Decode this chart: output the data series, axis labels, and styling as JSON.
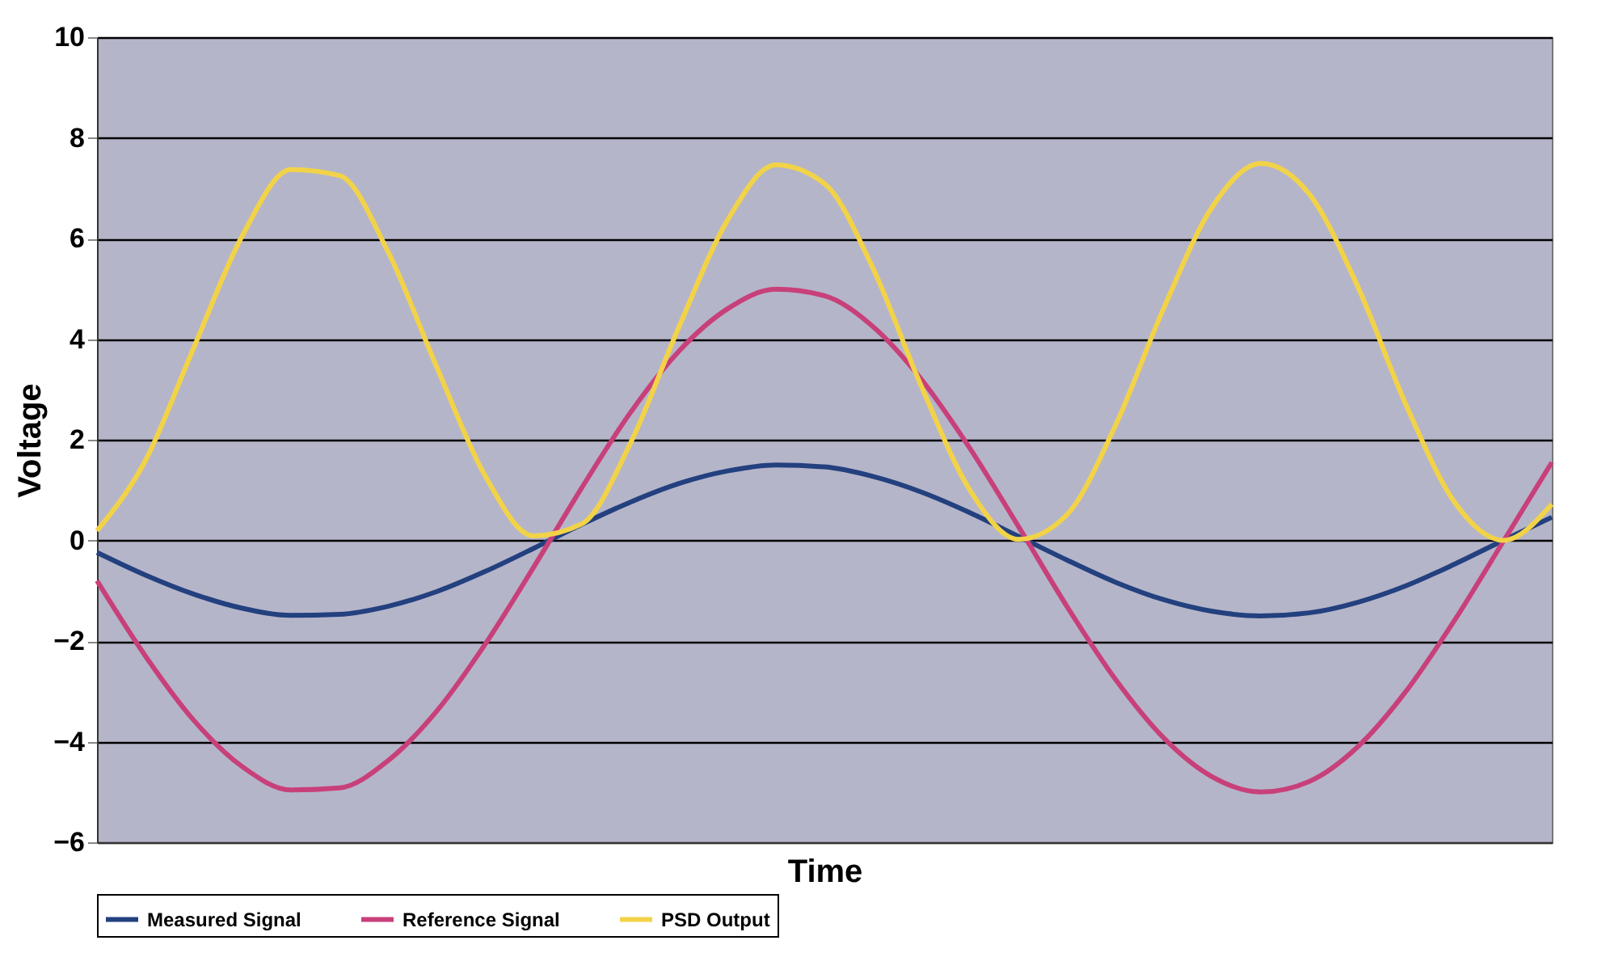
{
  "chart_data": {
    "type": "line",
    "xlabel": "Time",
    "ylabel": "Voltage",
    "categories": [
      null,
      null,
      null,
      null,
      null,
      null,
      null,
      null,
      null,
      null,
      null,
      null,
      null,
      null,
      null,
      null,
      null,
      null,
      null,
      null,
      null,
      null,
      null,
      null,
      null,
      null,
      null,
      null,
      null,
      null,
      null
    ],
    "series": [
      {
        "name": "Measured Signal",
        "color": "#23407f",
        "values": [
          -0.24,
          -0.69,
          -1.07,
          -1.35,
          -1.49,
          -1.47,
          -1.31,
          -1.02,
          -0.62,
          -0.16,
          0.32,
          0.76,
          1.13,
          1.38,
          1.5,
          1.46,
          1.27,
          0.96,
          0.55,
          0.08,
          -0.39,
          -0.83,
          -1.18,
          -1.41,
          -1.5,
          -1.44,
          -1.23,
          -0.9,
          -0.47,
          0.0,
          0.46
        ]
      },
      {
        "name": "Reference Signal",
        "color": "#c8407a",
        "values": [
          -0.8,
          -2.3,
          -3.58,
          -4.5,
          -4.96,
          -4.92,
          -4.38,
          -3.4,
          -2.07,
          -0.54,
          1.05,
          2.54,
          3.76,
          4.6,
          4.99,
          4.86,
          4.25,
          3.2,
          1.83,
          0.28,
          -1.31,
          -2.76,
          -3.93,
          -4.7,
          -5.0,
          -4.79,
          -4.1,
          -2.99,
          -1.58,
          -0.02,
          1.55
        ]
      },
      {
        "name": "PSD Output",
        "color": "#f2d348",
        "values": [
          0.19,
          1.59,
          3.84,
          6.06,
          7.37,
          7.25,
          5.74,
          3.46,
          1.29,
          0.09,
          0.33,
          1.93,
          4.24,
          6.36,
          7.46,
          7.09,
          5.41,
          3.06,
          1.0,
          0.02,
          0.51,
          2.28,
          4.62,
          6.63,
          7.49,
          6.88,
          5.04,
          2.68,
          0.75,
          0.0,
          0.72
        ]
      }
    ],
    "ylim": [
      -6,
      10
    ],
    "yticks": [
      -6,
      -4,
      -2,
      0,
      2,
      4,
      6,
      8,
      10
    ],
    "grid": "y",
    "legend": "bottom",
    "tick_labels": "y",
    "marker": "none",
    "line_style": "solid"
  }
}
